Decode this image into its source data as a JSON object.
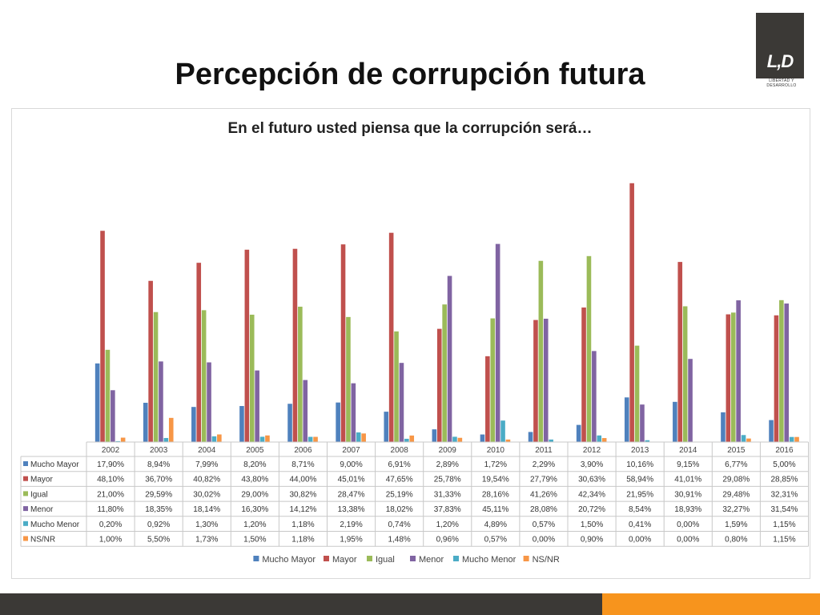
{
  "slide_title": "Percepción de corrupción futura",
  "logo": {
    "mark": "L,D",
    "subtitle": "LIBERTAD Y DESARROLLO"
  },
  "chart_data": {
    "type": "bar",
    "title": "En el futuro usted piensa que la corrupción será…",
    "categories": [
      "2002",
      "2003",
      "2004",
      "2005",
      "2006",
      "2007",
      "2008",
      "2009",
      "2010",
      "2011",
      "2012",
      "2013",
      "2014",
      "2015",
      "2016"
    ],
    "series": [
      {
        "name": "Mucho Mayor",
        "color": "#4f81bd",
        "values": [
          17.9,
          8.94,
          7.99,
          8.2,
          8.71,
          9.0,
          6.91,
          2.89,
          1.72,
          2.29,
          3.9,
          10.16,
          9.15,
          6.77,
          5.0
        ],
        "labels": [
          "17,90%",
          "8,94%",
          "7,99%",
          "8,20%",
          "8,71%",
          "9,00%",
          "6,91%",
          "2,89%",
          "1,72%",
          "2,29%",
          "3,90%",
          "10,16%",
          "9,15%",
          "6,77%",
          "5,00%"
        ]
      },
      {
        "name": "Mayor",
        "color": "#c0504d",
        "values": [
          48.1,
          36.7,
          40.82,
          43.8,
          44.0,
          45.01,
          47.65,
          25.78,
          19.54,
          27.79,
          30.63,
          58.94,
          41.01,
          29.08,
          28.85
        ],
        "labels": [
          "48,10%",
          "36,70%",
          "40,82%",
          "43,80%",
          "44,00%",
          "45,01%",
          "47,65%",
          "25,78%",
          "19,54%",
          "27,79%",
          "30,63%",
          "58,94%",
          "41,01%",
          "29,08%",
          "28,85%"
        ]
      },
      {
        "name": "Igual",
        "color": "#9bbb59",
        "values": [
          21.0,
          29.59,
          30.02,
          29.0,
          30.82,
          28.47,
          25.19,
          31.33,
          28.16,
          41.26,
          42.34,
          21.95,
          30.91,
          29.48,
          32.31
        ],
        "labels": [
          "21,00%",
          "29,59%",
          "30,02%",
          "29,00%",
          "30,82%",
          "28,47%",
          "25,19%",
          "31,33%",
          "28,16%",
          "41,26%",
          "42,34%",
          "21,95%",
          "30,91%",
          "29,48%",
          "32,31%"
        ]
      },
      {
        "name": "Menor",
        "color": "#8064a2",
        "values": [
          11.8,
          18.35,
          18.14,
          16.3,
          14.12,
          13.38,
          18.02,
          37.83,
          45.11,
          28.08,
          20.72,
          8.54,
          18.93,
          32.27,
          31.54
        ],
        "labels": [
          "11,80%",
          "18,35%",
          "18,14%",
          "16,30%",
          "14,12%",
          "13,38%",
          "18,02%",
          "37,83%",
          "45,11%",
          "28,08%",
          "20,72%",
          "8,54%",
          "18,93%",
          "32,27%",
          "31,54%"
        ]
      },
      {
        "name": "Mucho Menor",
        "color": "#4bacc6",
        "values": [
          0.2,
          0.92,
          1.3,
          1.2,
          1.18,
          2.19,
          0.74,
          1.2,
          4.89,
          0.57,
          1.5,
          0.41,
          0.0,
          1.59,
          1.15
        ],
        "labels": [
          "0,20%",
          "0,92%",
          "1,30%",
          "1,20%",
          "1,18%",
          "2,19%",
          "0,74%",
          "1,20%",
          "4,89%",
          "0,57%",
          "1,50%",
          "0,41%",
          "0,00%",
          "1,59%",
          "1,15%"
        ]
      },
      {
        "name": "NS/NR",
        "color": "#f79646",
        "values": [
          1.0,
          5.5,
          1.73,
          1.5,
          1.18,
          1.95,
          1.48,
          0.96,
          0.57,
          0.0,
          0.9,
          0.0,
          0.0,
          0.8,
          1.15
        ],
        "labels": [
          "1,00%",
          "5,50%",
          "1,73%",
          "1,50%",
          "1,18%",
          "1,95%",
          "1,48%",
          "0,96%",
          "0,57%",
          "0,00%",
          "0,90%",
          "0,00%",
          "0,00%",
          "0,80%",
          "1,15%"
        ]
      }
    ],
    "ylim": [
      0,
      62
    ],
    "grid": false,
    "legend_position": "bottom",
    "data_table": true
  }
}
